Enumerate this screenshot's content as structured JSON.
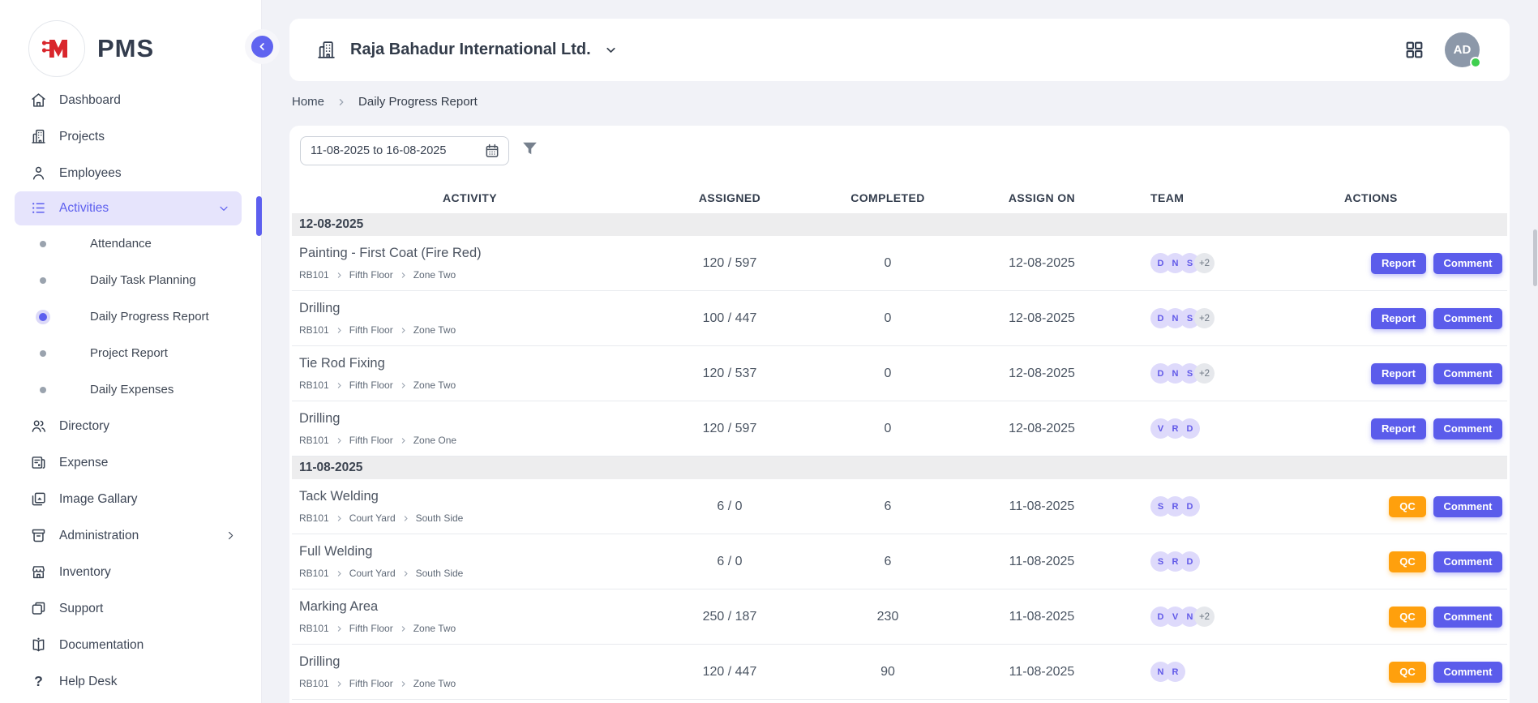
{
  "brand": {
    "app_name": "PMS",
    "logo_letter": "M"
  },
  "header": {
    "company": "Raja Bahadur International Ltd.",
    "avatar_initials": "AD"
  },
  "breadcrumb": {
    "home": "Home",
    "current": "Daily Progress Report"
  },
  "filters": {
    "date_range": "11-08-2025 to 16-08-2025"
  },
  "sidebar": {
    "items": [
      {
        "label": "Dashboard",
        "icon": "home"
      },
      {
        "label": "Projects",
        "icon": "building"
      },
      {
        "label": "Employees",
        "icon": "person"
      },
      {
        "label": "Activities",
        "icon": "list",
        "active": true,
        "expanded": true,
        "children": [
          {
            "label": "Attendance"
          },
          {
            "label": "Daily Task Planning"
          },
          {
            "label": "Daily Progress Report",
            "active": true
          },
          {
            "label": "Project Report"
          },
          {
            "label": "Daily Expenses"
          }
        ]
      },
      {
        "label": "Directory",
        "icon": "people"
      },
      {
        "label": "Expense",
        "icon": "receipt"
      },
      {
        "label": "Image Gallary",
        "icon": "gallery"
      },
      {
        "label": "Administration",
        "icon": "archive",
        "trailing": "chevron-right"
      },
      {
        "label": "Inventory",
        "icon": "store"
      },
      {
        "label": "Support",
        "icon": "copy"
      },
      {
        "label": "Documentation",
        "icon": "book"
      },
      {
        "label": "Help Desk",
        "icon": "question"
      }
    ]
  },
  "actions": {
    "report": "Report",
    "comment": "Comment",
    "qc": "QC"
  },
  "table": {
    "columns": [
      "ACTIVITY",
      "ASSIGNED",
      "COMPLETED",
      "ASSIGN ON",
      "TEAM",
      "ACTIONS"
    ],
    "groups": [
      {
        "date": "12-08-2025",
        "rows": [
          {
            "activity": "Painting - First Coat (Fire Red)",
            "path": [
              "RB101",
              "Fifth Floor",
              "Zone Two"
            ],
            "assigned": "120 / 597",
            "completed": "0",
            "assign_on": "12-08-2025",
            "team": [
              "D",
              "N",
              "S"
            ],
            "team_overflow": "+2",
            "primary": "report"
          },
          {
            "activity": "Drilling",
            "path": [
              "RB101",
              "Fifth Floor",
              "Zone Two"
            ],
            "assigned": "100 / 447",
            "completed": "0",
            "assign_on": "12-08-2025",
            "team": [
              "D",
              "N",
              "S"
            ],
            "team_overflow": "+2",
            "primary": "report"
          },
          {
            "activity": "Tie Rod Fixing",
            "path": [
              "RB101",
              "Fifth Floor",
              "Zone Two"
            ],
            "assigned": "120 / 537",
            "completed": "0",
            "assign_on": "12-08-2025",
            "team": [
              "D",
              "N",
              "S"
            ],
            "team_overflow": "+2",
            "primary": "report"
          },
          {
            "activity": "Drilling",
            "path": [
              "RB101",
              "Fifth Floor",
              "Zone One"
            ],
            "assigned": "120 / 597",
            "completed": "0",
            "assign_on": "12-08-2025",
            "team": [
              "V",
              "R",
              "D"
            ],
            "team_overflow": null,
            "primary": "report"
          }
        ]
      },
      {
        "date": "11-08-2025",
        "rows": [
          {
            "activity": "Tack Welding",
            "path": [
              "RB101",
              "Court Yard",
              "South Side"
            ],
            "assigned": "6 / 0",
            "completed": "6",
            "assign_on": "11-08-2025",
            "team": [
              "S",
              "R",
              "D"
            ],
            "team_overflow": null,
            "primary": "qc"
          },
          {
            "activity": "Full Welding",
            "path": [
              "RB101",
              "Court Yard",
              "South Side"
            ],
            "assigned": "6 / 0",
            "completed": "6",
            "assign_on": "11-08-2025",
            "team": [
              "S",
              "R",
              "D"
            ],
            "team_overflow": null,
            "primary": "qc"
          },
          {
            "activity": "Marking Area",
            "path": [
              "RB101",
              "Fifth Floor",
              "Zone Two"
            ],
            "assigned": "250 / 187",
            "completed": "230",
            "assign_on": "11-08-2025",
            "team": [
              "D",
              "V",
              "N"
            ],
            "team_overflow": "+2",
            "primary": "qc"
          },
          {
            "activity": "Drilling",
            "path": [
              "RB101",
              "Fifth Floor",
              "Zone Two"
            ],
            "assigned": "120 / 447",
            "completed": "90",
            "assign_on": "11-08-2025",
            "team": [
              "N",
              "R"
            ],
            "team_overflow": null,
            "primary": "qc"
          }
        ]
      }
    ]
  },
  "colors": {
    "accent": "#5b5ceb",
    "qc_orange": "#ffa00d",
    "logo_red": "#d9262c",
    "online_green": "#3fcf4e",
    "active_item_bg": "#e6e4fc"
  }
}
